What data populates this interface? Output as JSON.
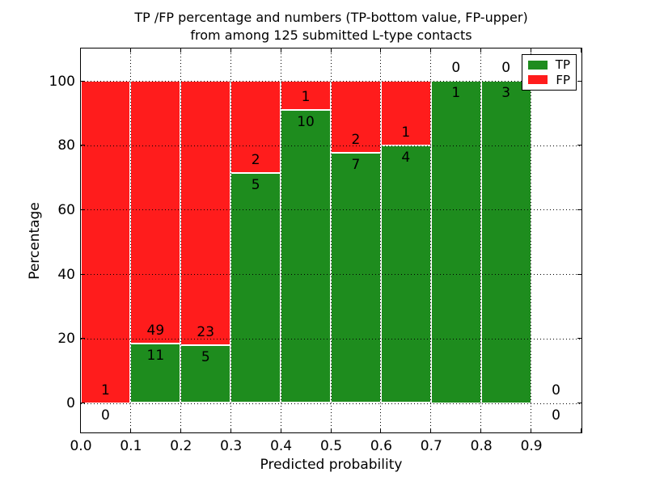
{
  "chart_data": {
    "type": "bar",
    "stacked": true,
    "title": "TP /FP percentage and numbers (TP-bottom value, FP-upper)",
    "subtitle": "from among 125 submitted L-type contacts",
    "xlabel": "Predicted probability",
    "ylabel": "Percentage",
    "total_contacts": 125,
    "annotation_rule": "TP count printed just below each green-segment top, FP count just above it",
    "bins": [
      {
        "range": "0.0-0.1",
        "tp": 0,
        "fp": 1,
        "tp_pct": 0
      },
      {
        "range": "0.1-0.2",
        "tp": 11,
        "fp": 49,
        "tp_pct": 18.33
      },
      {
        "range": "0.2-0.3",
        "tp": 5,
        "fp": 23,
        "tp_pct": 17.86
      },
      {
        "range": "0.3-0.4",
        "tp": 5,
        "fp": 2,
        "tp_pct": 71.43
      },
      {
        "range": "0.4-0.5",
        "tp": 10,
        "fp": 1,
        "tp_pct": 90.91
      },
      {
        "range": "0.5-0.6",
        "tp": 7,
        "fp": 2,
        "tp_pct": 77.78
      },
      {
        "range": "0.6-0.7",
        "tp": 4,
        "fp": 1,
        "tp_pct": 80.0
      },
      {
        "range": "0.7-0.8",
        "tp": 1,
        "fp": 0,
        "tp_pct": 100.0
      },
      {
        "range": "0.8-0.9",
        "tp": 3,
        "fp": 0,
        "tp_pct": 100.0
      },
      {
        "range": "0.9-1.0",
        "tp": 0,
        "fp": 0,
        "tp_pct": 0
      }
    ],
    "series": [
      {
        "name": "TP",
        "color": "#1e8c1e"
      },
      {
        "name": "FP",
        "color": "#ff1c1c"
      }
    ],
    "x_ticks": [
      "0.0",
      "0.1",
      "0.2",
      "0.3",
      "0.4",
      "0.5",
      "0.6",
      "0.7",
      "0.8",
      "0.9"
    ],
    "y_ticks": [
      0,
      20,
      40,
      60,
      80,
      100
    ],
    "xlim": [
      0.0,
      1.0
    ],
    "ylim": [
      -9,
      110
    ],
    "grid": {
      "on": true,
      "style": "dotted",
      "color": "#000000"
    },
    "legend": {
      "position": "upper-right",
      "entries": [
        {
          "label": "TP",
          "color": "#1e8c1e"
        },
        {
          "label": "FP",
          "color": "#ff1c1c"
        }
      ]
    }
  }
}
